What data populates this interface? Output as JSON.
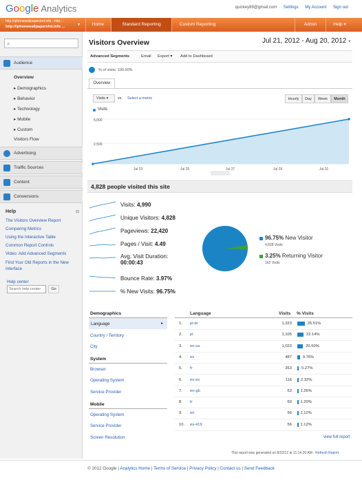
{
  "header": {
    "brand_g": [
      "G",
      "o",
      "o",
      "g",
      "l",
      "e"
    ],
    "brand_rest": "Analytics",
    "email": "quickey89@gmail.com",
    "settings": "Settings",
    "my_account": "My Account",
    "sign_out": "Sign out"
  },
  "account": {
    "line1": "http://iphonewallpapershd.info - http:...",
    "line2": "http://iphonewallpapershd.info ..."
  },
  "nav": {
    "home": "Home",
    "standard": "Standard Reporting",
    "custom": "Custom Reporting",
    "admin": "Admin",
    "help": "Help"
  },
  "sidebar": {
    "audience": "Audience",
    "overview": "Overview",
    "items": [
      "Demographics",
      "Behavior",
      "Technology",
      "Mobile",
      "Custom",
      "Visitors Flow"
    ],
    "advertising": "Advertising",
    "traffic": "Traffic Sources",
    "content": "Content",
    "conversions": "Conversions",
    "help_title": "Help",
    "help_links": [
      "The Visitors Overview Report",
      "Comparing Metrics",
      "Using the Interactive Table",
      "Common Report Controls",
      "Video: Add Advanced Segments",
      "Find Your Old Reports in the New Interface"
    ],
    "help_center": "Help center",
    "search_placeholder": "Search help center",
    "go": "Go"
  },
  "report": {
    "title": "Visitors Overview",
    "date_range": "Jul 21, 2012 - Aug 20, 2012",
    "toolbar": [
      "Advanced Segments",
      "Email",
      "Export",
      "Add to Dashboard"
    ],
    "segment": "% of visits: 100.00%",
    "tab": "Overview",
    "metric_select": "Visits",
    "vs": "vs.",
    "select_metric": "Select a metric",
    "granularity": [
      "Hourly",
      "Day",
      "Week",
      "Month"
    ],
    "granularity_active": "Month",
    "legend": "Visits",
    "summary": "4,828 people visited this site"
  },
  "chart_data": {
    "type": "area",
    "series": [
      {
        "name": "Visits",
        "values": [
          0,
          5000
        ]
      }
    ],
    "x": [
      "Jul 21",
      "Aug 20"
    ],
    "xticks": [
      "Jul 23",
      "Jul 25",
      "Jul 27",
      "Jul 29",
      "Jul 31"
    ],
    "yticks": [
      "5,000",
      "2,500"
    ],
    "ylim": [
      0,
      5000
    ],
    "color": "#1f84c7"
  },
  "metrics": [
    {
      "label": "Visits:",
      "value": "4,990"
    },
    {
      "label": "Unique Visitors:",
      "value": "4,828"
    },
    {
      "label": "Pageviews:",
      "value": "22,420"
    },
    {
      "label": "Pages / Visit:",
      "value": "4.49"
    },
    {
      "label": "Avg. Visit Duration:",
      "value": "00:00:43"
    },
    {
      "label": "Bounce Rate:",
      "value": "3.97%"
    },
    {
      "label": "% New Visits:",
      "value": "96.75%"
    }
  ],
  "pie": {
    "new_pct": "96.75%",
    "new_label": "New Visitor",
    "new_visits": "4,828 Visits",
    "ret_pct": "3.25%",
    "ret_label": "Returning Visitor",
    "ret_visits": "162 Visits",
    "new_frac": 0.9675,
    "new_color": "#1b84c5",
    "ret_color": "#3aa03a"
  },
  "dimensions": {
    "demographics": "Demographics",
    "language": "Language",
    "country": "Country / Territory",
    "city": "City",
    "system": "System",
    "browser": "Browser",
    "os": "Operating System",
    "sp": "Service Provider",
    "mobile": "Mobile",
    "mos": "Operating System",
    "msp": "Service Provider",
    "res": "Screen Resolution"
  },
  "table": {
    "col_lang": "Language",
    "col_visits": "Visits",
    "col_pct": "% Visits",
    "rows": [
      {
        "n": "1.",
        "lang": "pt-br",
        "visits": "1,323",
        "pct": "26.51%",
        "frac": 0.2651
      },
      {
        "n": "2.",
        "lang": "pl",
        "visits": "1,105",
        "pct": "22.14%",
        "frac": 0.2214
      },
      {
        "n": "3.",
        "lang": "en-us",
        "visits": "1,023",
        "pct": "20.50%",
        "frac": 0.205
      },
      {
        "n": "4.",
        "lang": "es",
        "visits": "487",
        "pct": "9.76%",
        "frac": 0.0976
      },
      {
        "n": "5.",
        "lang": "fr",
        "visits": "263",
        "pct": "5.27%",
        "frac": 0.0527
      },
      {
        "n": "6.",
        "lang": "es-es",
        "visits": "116",
        "pct": "2.32%",
        "frac": 0.0232
      },
      {
        "n": "7.",
        "lang": "en-gb",
        "visits": "63",
        "pct": "1.26%",
        "frac": 0.0126
      },
      {
        "n": "8.",
        "lang": "tr",
        "visits": "60",
        "pct": "1.20%",
        "frac": 0.012
      },
      {
        "n": "9.",
        "lang": "en",
        "visits": "56",
        "pct": "1.12%",
        "frac": 0.0112
      },
      {
        "n": "10.",
        "lang": "es-419",
        "visits": "56",
        "pct": "1.12%",
        "frac": 0.0112
      }
    ],
    "view_full": "view full report"
  },
  "generated": {
    "text": "This report was generated on 8/22/12 at 11:14:20 AM -",
    "refresh": "Refresh Report"
  },
  "footer": {
    "copy": "© 2012 Google",
    "links": [
      "Analytics Home",
      "Terms of Service",
      "Privacy Policy",
      "Contact us",
      "Send Feedback"
    ]
  }
}
